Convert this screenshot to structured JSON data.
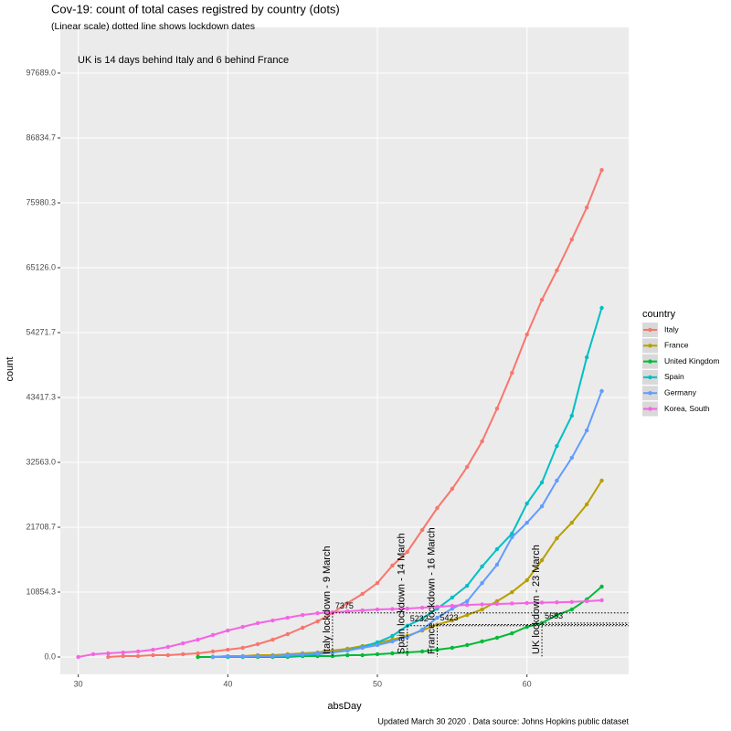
{
  "chart_data": {
    "type": "line",
    "title": "Cov-19: count of total cases registred by country (dots)",
    "subtitle": "(Linear scale) dotted line shows lockdown dates",
    "annotation": "UK is 14 days behind Italy and 6 behind France",
    "caption": "Updated  March 30 2020 . Data source: Johns Hopkins public dataset",
    "x_label": "absDay",
    "y_label": "count",
    "legend_title": "country",
    "grid": true,
    "x": [
      30,
      31,
      32,
      33,
      34,
      35,
      36,
      37,
      38,
      39,
      40,
      41,
      42,
      43,
      44,
      45,
      46,
      47,
      48,
      49,
      50,
      51,
      52,
      53,
      54,
      55,
      56,
      57,
      58,
      59,
      60,
      61,
      62,
      63,
      64,
      65
    ],
    "xlim": [
      28.8,
      66.8
    ],
    "xticks": [
      30,
      40,
      50,
      60
    ],
    "ylim": [
      -2905,
      105333
    ],
    "yticks": [
      {
        "value": 0,
        "label": "0.0"
      },
      10854.3,
      21708.7,
      {
        "value": 32563,
        "label": "32563.0"
      },
      43417.3,
      54271.7,
      {
        "value": 65126,
        "label": "65126.0"
      },
      75980.3,
      86834.7,
      {
        "value": 97689,
        "label": "97689.0"
      }
    ],
    "series": [
      {
        "name": "Italy",
        "color": "#F8766D",
        "values": [
          null,
          null,
          0,
          150,
          150,
          300,
          300,
          460,
          610,
          920,
          1220,
          1530,
          2140,
          2900,
          3820,
          4890,
          5960,
          7375,
          9020,
          10550,
          12380,
          15290,
          17580,
          21250,
          24920,
          28130,
          31800,
          36080,
          41580,
          47540,
          53960,
          59770,
          64670,
          69860,
          75210,
          81480
        ]
      },
      {
        "name": "France",
        "color": "#B79F00",
        "values": [
          null,
          null,
          null,
          null,
          null,
          null,
          null,
          null,
          0,
          0,
          150,
          150,
          300,
          300,
          460,
          610,
          760,
          1070,
          1380,
          1830,
          2290,
          2900,
          3520,
          4430,
          5423,
          6110,
          7030,
          7950,
          9330,
          10850,
          12840,
          16200,
          19870,
          22470,
          25530,
          29510
        ]
      },
      {
        "name": "United Kingdom",
        "color": "#00BA38",
        "values": [
          null,
          null,
          null,
          null,
          null,
          null,
          null,
          null,
          0,
          0,
          0,
          0,
          0,
          0,
          0,
          150,
          150,
          150,
          300,
          300,
          460,
          610,
          760,
          920,
          1220,
          1530,
          1990,
          2600,
          3210,
          3970,
          5040,
          5683,
          7030,
          7950,
          9630,
          11770
        ]
      },
      {
        "name": "Spain",
        "color": "#00BFC4",
        "values": [
          null,
          null,
          null,
          null,
          null,
          null,
          null,
          null,
          null,
          0,
          0,
          0,
          150,
          150,
          150,
          300,
          460,
          760,
          1070,
          1680,
          2450,
          3520,
          5232,
          6420,
          8100,
          9940,
          11920,
          15140,
          18040,
          20640,
          25680,
          29200,
          35310,
          40360,
          50140,
          58400
        ]
      },
      {
        "name": "Germany",
        "color": "#619CFF",
        "values": [
          null,
          null,
          null,
          null,
          null,
          null,
          null,
          null,
          null,
          0,
          150,
          150,
          150,
          150,
          300,
          460,
          610,
          760,
          1070,
          1530,
          1990,
          2600,
          3360,
          4590,
          6570,
          8100,
          9330,
          12380,
          15440,
          20030,
          22470,
          25220,
          29510,
          33330,
          37910,
          44490
        ]
      },
      {
        "name": "Korea, South",
        "color": "#F564E3",
        "values": [
          0,
          460,
          610,
          760,
          920,
          1220,
          1680,
          2290,
          2900,
          3670,
          4430,
          5040,
          5660,
          6110,
          6570,
          7030,
          7330,
          7480,
          7640,
          7800,
          7950,
          8020,
          8100,
          8250,
          8400,
          8560,
          8710,
          8790,
          8870,
          8950,
          9020,
          9100,
          9140,
          9200,
          9330,
          9480
        ]
      }
    ],
    "lockdowns": [
      {
        "label": "Italy lockdown - 9 March",
        "day": 47,
        "cases": 7375
      },
      {
        "label": "Spain lockdown - 14 March",
        "day": 52,
        "cases": 5232
      },
      {
        "label": "France lockdown - 16 March",
        "day": 54,
        "cases": 5423
      },
      {
        "label": "UK lockdown - 23 March",
        "day": 61,
        "cases": 5683
      }
    ]
  }
}
